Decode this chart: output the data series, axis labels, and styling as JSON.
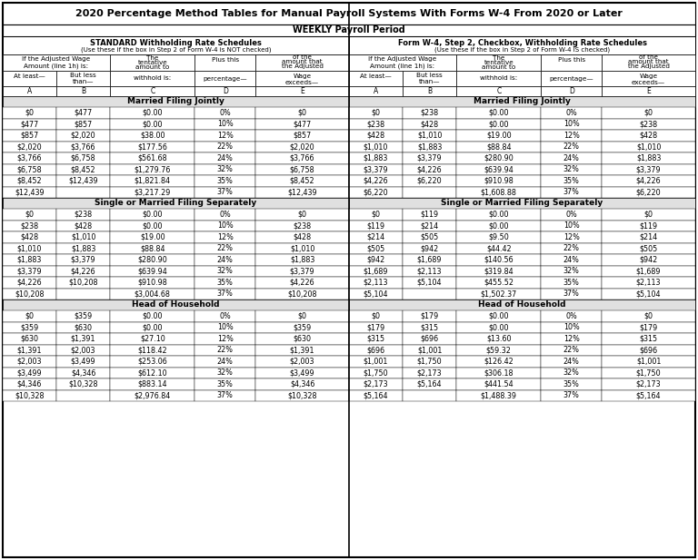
{
  "title": "2020 Percentage Method Tables for Manual Payroll Systems With Forms W-4 From 2020 or Later",
  "subtitle": "WEEKLY Payroll Period",
  "left_header1": "STANDARD Withholding Rate Schedules",
  "left_header2": "(Use these if the box in Step 2 of Form W-4 is NOT checked)",
  "right_header1": "Form W-4, Step 2, Checkbox, Withholding Rate Schedules",
  "right_header2": "(Use these if the box in Step 2 of Form W-4 IS checked)",
  "col_letters": [
    "A",
    "B",
    "C",
    "D",
    "E"
  ],
  "sections": [
    {
      "name": "Married Filing Jointly",
      "left": [
        [
          "$0",
          "$477",
          "$0.00",
          "0%",
          "$0"
        ],
        [
          "$477",
          "$857",
          "$0.00",
          "10%",
          "$477"
        ],
        [
          "$857",
          "$2,020",
          "$38.00",
          "12%",
          "$857"
        ],
        [
          "$2,020",
          "$3,766",
          "$177.56",
          "22%",
          "$2,020"
        ],
        [
          "$3,766",
          "$6,758",
          "$561.68",
          "24%",
          "$3,766"
        ],
        [
          "$6,758",
          "$8,452",
          "$1,279.76",
          "32%",
          "$6,758"
        ],
        [
          "$8,452",
          "$12,439",
          "$1,821.84",
          "35%",
          "$8,452"
        ],
        [
          "$12,439",
          "",
          "$3,217.29",
          "37%",
          "$12,439"
        ]
      ],
      "right": [
        [
          "$0",
          "$238",
          "$0.00",
          "0%",
          "$0"
        ],
        [
          "$238",
          "$428",
          "$0.00",
          "10%",
          "$238"
        ],
        [
          "$428",
          "$1,010",
          "$19.00",
          "12%",
          "$428"
        ],
        [
          "$1,010",
          "$1,883",
          "$88.84",
          "22%",
          "$1,010"
        ],
        [
          "$1,883",
          "$3,379",
          "$280.90",
          "24%",
          "$1,883"
        ],
        [
          "$3,379",
          "$4,226",
          "$639.94",
          "32%",
          "$3,379"
        ],
        [
          "$4,226",
          "$6,220",
          "$910.98",
          "35%",
          "$4,226"
        ],
        [
          "$6,220",
          "",
          "$1,608.88",
          "37%",
          "$6,220"
        ]
      ]
    },
    {
      "name": "Single or Married Filing Separately",
      "left": [
        [
          "$0",
          "$238",
          "$0.00",
          "0%",
          "$0"
        ],
        [
          "$238",
          "$428",
          "$0.00",
          "10%",
          "$238"
        ],
        [
          "$428",
          "$1,010",
          "$19.00",
          "12%",
          "$428"
        ],
        [
          "$1,010",
          "$1,883",
          "$88.84",
          "22%",
          "$1,010"
        ],
        [
          "$1,883",
          "$3,379",
          "$280.90",
          "24%",
          "$1,883"
        ],
        [
          "$3,379",
          "$4,226",
          "$639.94",
          "32%",
          "$3,379"
        ],
        [
          "$4,226",
          "$10,208",
          "$910.98",
          "35%",
          "$4,226"
        ],
        [
          "$10,208",
          "",
          "$3,004.68",
          "37%",
          "$10,208"
        ]
      ],
      "right": [
        [
          "$0",
          "$119",
          "$0.00",
          "0%",
          "$0"
        ],
        [
          "$119",
          "$214",
          "$0.00",
          "10%",
          "$119"
        ],
        [
          "$214",
          "$505",
          "$9.50",
          "12%",
          "$214"
        ],
        [
          "$505",
          "$942",
          "$44.42",
          "22%",
          "$505"
        ],
        [
          "$942",
          "$1,689",
          "$140.56",
          "24%",
          "$942"
        ],
        [
          "$1,689",
          "$2,113",
          "$319.84",
          "32%",
          "$1,689"
        ],
        [
          "$2,113",
          "$5,104",
          "$455.52",
          "35%",
          "$2,113"
        ],
        [
          "$5,104",
          "",
          "$1,502.37",
          "37%",
          "$5,104"
        ]
      ]
    },
    {
      "name": "Head of Household",
      "left": [
        [
          "$0",
          "$359",
          "$0.00",
          "0%",
          "$0"
        ],
        [
          "$359",
          "$630",
          "$0.00",
          "10%",
          "$359"
        ],
        [
          "$630",
          "$1,391",
          "$27.10",
          "12%",
          "$630"
        ],
        [
          "$1,391",
          "$2,003",
          "$118.42",
          "22%",
          "$1,391"
        ],
        [
          "$2,003",
          "$3,499",
          "$253.06",
          "24%",
          "$2,003"
        ],
        [
          "$3,499",
          "$4,346",
          "$612.10",
          "32%",
          "$3,499"
        ],
        [
          "$4,346",
          "$10,328",
          "$883.14",
          "35%",
          "$4,346"
        ],
        [
          "$10,328",
          "",
          "$2,976.84",
          "37%",
          "$10,328"
        ]
      ],
      "right": [
        [
          "$0",
          "$179",
          "$0.00",
          "0%",
          "$0"
        ],
        [
          "$179",
          "$315",
          "$0.00",
          "10%",
          "$179"
        ],
        [
          "$315",
          "$696",
          "$13.60",
          "12%",
          "$315"
        ],
        [
          "$696",
          "$1,001",
          "$59.32",
          "22%",
          "$696"
        ],
        [
          "$1,001",
          "$1,750",
          "$126.42",
          "24%",
          "$1,001"
        ],
        [
          "$1,750",
          "$2,173",
          "$306.18",
          "32%",
          "$1,750"
        ],
        [
          "$2,173",
          "$5,164",
          "$441.54",
          "35%",
          "$2,173"
        ],
        [
          "$5,164",
          "",
          "$1,488.39",
          "37%",
          "$5,164"
        ]
      ]
    }
  ],
  "bg_color": "#ffffff",
  "section_bg": "#e0e0e0",
  "border_color": "#000000"
}
